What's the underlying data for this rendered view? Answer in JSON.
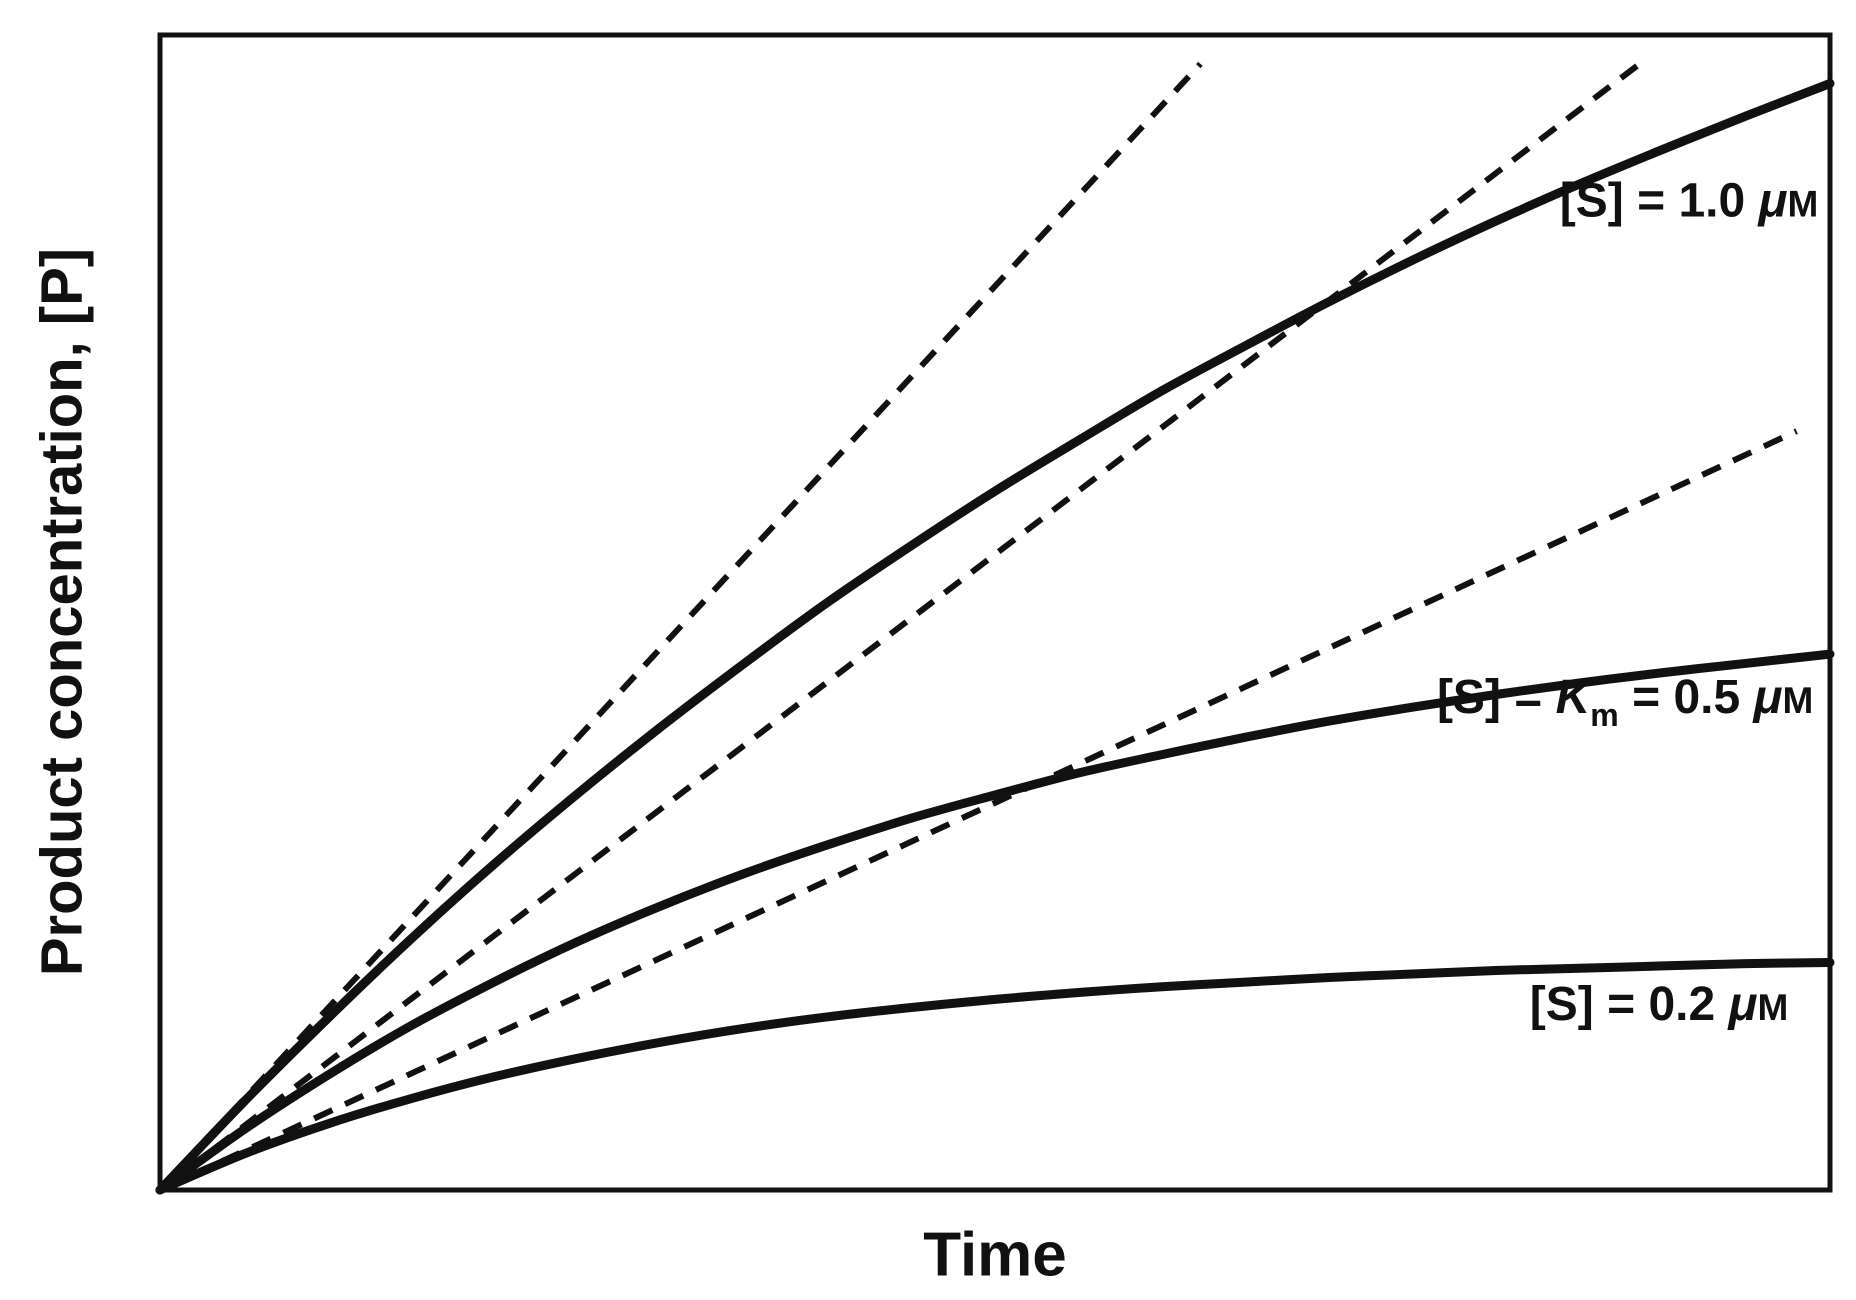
{
  "chart_data": {
    "type": "line",
    "title": "",
    "xlabel": "Time",
    "ylabel": "Product concentration, [P]",
    "xlim": [
      0,
      1
    ],
    "ylim": [
      0,
      1
    ],
    "grid": false,
    "axis_ticks_visible": false,
    "legend_position": "inline-labels",
    "colors": {
      "line": "#111111",
      "background": "#ffffff"
    },
    "x": [
      0,
      0.05,
      0.1,
      0.15,
      0.2,
      0.25,
      0.3,
      0.35,
      0.4,
      0.45,
      0.5,
      0.55,
      0.6,
      0.65,
      0.7,
      0.75,
      0.8,
      0.85,
      0.9,
      0.95,
      1.0
    ],
    "series": [
      {
        "id": "s-1.0um",
        "name": "progress curve [S] = 1.0 uM",
        "label": "[S] = 1.0 μM",
        "style": "solid",
        "values": [
          0,
          0.076,
          0.148,
          0.217,
          0.282,
          0.343,
          0.401,
          0.456,
          0.509,
          0.558,
          0.605,
          0.649,
          0.692,
          0.731,
          0.769,
          0.805,
          0.839,
          0.871,
          0.901,
          0.93,
          0.958
        ],
        "label_anchor": {
          "x": 0.993,
          "y": 0.843
        },
        "label_segments": [
          {
            "t": "[S] = 1.0 "
          },
          {
            "t": "μ",
            "italic": true
          },
          {
            "t": "M",
            "small": true
          }
        ]
      },
      {
        "id": "s-0.5um",
        "name": "progress curve [S] = Km = 0.5 uM",
        "label": "[S] = Km = 0.5 μM",
        "style": "solid",
        "values": [
          0,
          0.052,
          0.099,
          0.142,
          0.18,
          0.215,
          0.246,
          0.274,
          0.299,
          0.322,
          0.342,
          0.361,
          0.377,
          0.392,
          0.406,
          0.418,
          0.429,
          0.439,
          0.448,
          0.456,
          0.464
        ],
        "label_anchor": {
          "x": 0.99,
          "y": 0.413
        },
        "label_segments": [
          {
            "t": "[S] = "
          },
          {
            "t": "K",
            "italic": true
          },
          {
            "t": "m",
            "sub": true
          },
          {
            "t": " = 0.5 "
          },
          {
            "t": "μ",
            "italic": true
          },
          {
            "t": "M",
            "small": true
          }
        ]
      },
      {
        "id": "s-0.2um",
        "name": "progress curve [S] = 0.2 uM",
        "label": "[S] = 0.2 μM",
        "style": "solid",
        "values": [
          0,
          0.031,
          0.057,
          0.079,
          0.098,
          0.114,
          0.128,
          0.14,
          0.15,
          0.158,
          0.165,
          0.171,
          0.176,
          0.18,
          0.184,
          0.187,
          0.19,
          0.192,
          0.194,
          0.196,
          0.197
        ],
        "label_anchor": {
          "x": 0.975,
          "y": 0.147
        },
        "label_segments": [
          {
            "t": "[S] = 0.2 "
          },
          {
            "t": "μ",
            "italic": true
          },
          {
            "t": "M",
            "small": true
          }
        ]
      }
    ],
    "tangents": [
      {
        "id": "t-1.0um",
        "name": "initial-velocity-tangent-1.0uM",
        "slope": 1.57,
        "from": [
          0,
          0
        ],
        "to": [
          0.623,
          0.975
        ]
      },
      {
        "id": "t-0.5um",
        "name": "initial-velocity-tangent-0.5uM",
        "slope": 1.1,
        "from": [
          0,
          0
        ],
        "to": [
          0.886,
          0.975
        ]
      },
      {
        "id": "t-0.2um",
        "name": "initial-velocity-tangent-0.2uM",
        "slope": 0.67,
        "from": [
          0,
          0
        ],
        "to": [
          0.98,
          0.657
        ]
      }
    ]
  }
}
